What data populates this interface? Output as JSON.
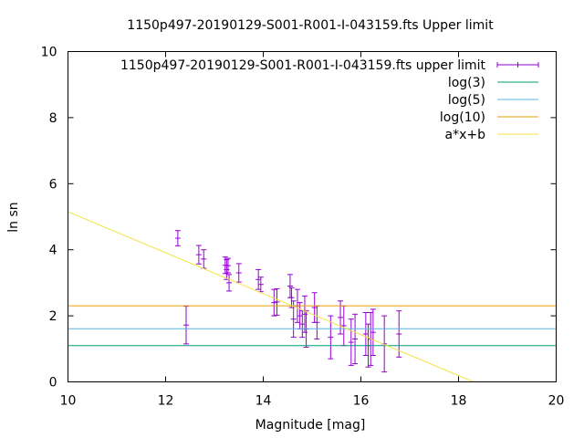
{
  "chart_data": {
    "type": "scatter",
    "title": "1150p497-20190129-S001-R001-I-043159.fts Upper limit",
    "xlabel": "Magnitude [mag]",
    "ylabel": "ln sn",
    "xlim": [
      10,
      20
    ],
    "ylim": [
      0,
      10
    ],
    "xticks": [
      "10",
      "12",
      "14",
      "16",
      "18",
      "20"
    ],
    "yticks": [
      "0",
      "2",
      "4",
      "6",
      "8",
      "10"
    ],
    "grid": false,
    "legend_position": "top-right",
    "series": [
      {
        "name": "1150p497-20190129-S001-R001-I-043159.fts upper limit",
        "kind": "errorbars",
        "color": "#9400d3",
        "points": [
          {
            "x": 12.25,
            "y": 4.35,
            "err": 0.23
          },
          {
            "x": 12.42,
            "y": 1.72,
            "err": 0.57
          },
          {
            "x": 12.68,
            "y": 3.85,
            "err": 0.28
          },
          {
            "x": 12.78,
            "y": 3.72,
            "err": 0.28
          },
          {
            "x": 13.22,
            "y": 3.53,
            "err": 0.25
          },
          {
            "x": 13.25,
            "y": 3.4,
            "err": 0.3
          },
          {
            "x": 13.28,
            "y": 3.52,
            "err": 0.22
          },
          {
            "x": 13.3,
            "y": 3.0,
            "err": 0.25
          },
          {
            "x": 13.5,
            "y": 3.3,
            "err": 0.28
          },
          {
            "x": 13.9,
            "y": 3.1,
            "err": 0.3
          },
          {
            "x": 13.95,
            "y": 2.95,
            "err": 0.22
          },
          {
            "x": 14.22,
            "y": 2.4,
            "err": 0.4
          },
          {
            "x": 14.28,
            "y": 2.42,
            "err": 0.4
          },
          {
            "x": 14.55,
            "y": 2.9,
            "err": 0.35
          },
          {
            "x": 14.58,
            "y": 2.55,
            "err": 0.3
          },
          {
            "x": 14.62,
            "y": 1.9,
            "err": 0.55
          },
          {
            "x": 14.7,
            "y": 2.3,
            "err": 0.5
          },
          {
            "x": 14.75,
            "y": 2.0,
            "err": 0.4
          },
          {
            "x": 14.8,
            "y": 1.75,
            "err": 0.4
          },
          {
            "x": 14.85,
            "y": 2.05,
            "err": 0.55
          },
          {
            "x": 14.88,
            "y": 1.6,
            "err": 0.55
          },
          {
            "x": 15.05,
            "y": 2.25,
            "err": 0.45
          },
          {
            "x": 15.1,
            "y": 1.8,
            "err": 0.5
          },
          {
            "x": 15.38,
            "y": 1.35,
            "err": 0.65
          },
          {
            "x": 15.58,
            "y": 1.95,
            "err": 0.5
          },
          {
            "x": 15.65,
            "y": 1.7,
            "err": 0.6
          },
          {
            "x": 15.8,
            "y": 1.2,
            "err": 0.7
          },
          {
            "x": 15.88,
            "y": 1.3,
            "err": 0.75
          },
          {
            "x": 16.1,
            "y": 1.45,
            "err": 0.65
          },
          {
            "x": 16.15,
            "y": 1.1,
            "err": 0.65
          },
          {
            "x": 16.2,
            "y": 1.3,
            "err": 0.8
          },
          {
            "x": 16.25,
            "y": 1.5,
            "err": 0.7
          },
          {
            "x": 16.48,
            "y": 1.15,
            "err": 0.85
          },
          {
            "x": 16.78,
            "y": 1.45,
            "err": 0.7
          }
        ]
      },
      {
        "name": "log(3)",
        "kind": "hline",
        "y": 1.0986,
        "color": "#009e73"
      },
      {
        "name": "log(5)",
        "kind": "hline",
        "y": 1.6094,
        "color": "#56b4e9"
      },
      {
        "name": "log(10)",
        "kind": "hline",
        "y": 2.3026,
        "color": "#e69f00"
      },
      {
        "name": "a*x+b",
        "kind": "line",
        "color": "#f0e442",
        "slope": -0.62,
        "intercept": 11.35
      }
    ]
  }
}
